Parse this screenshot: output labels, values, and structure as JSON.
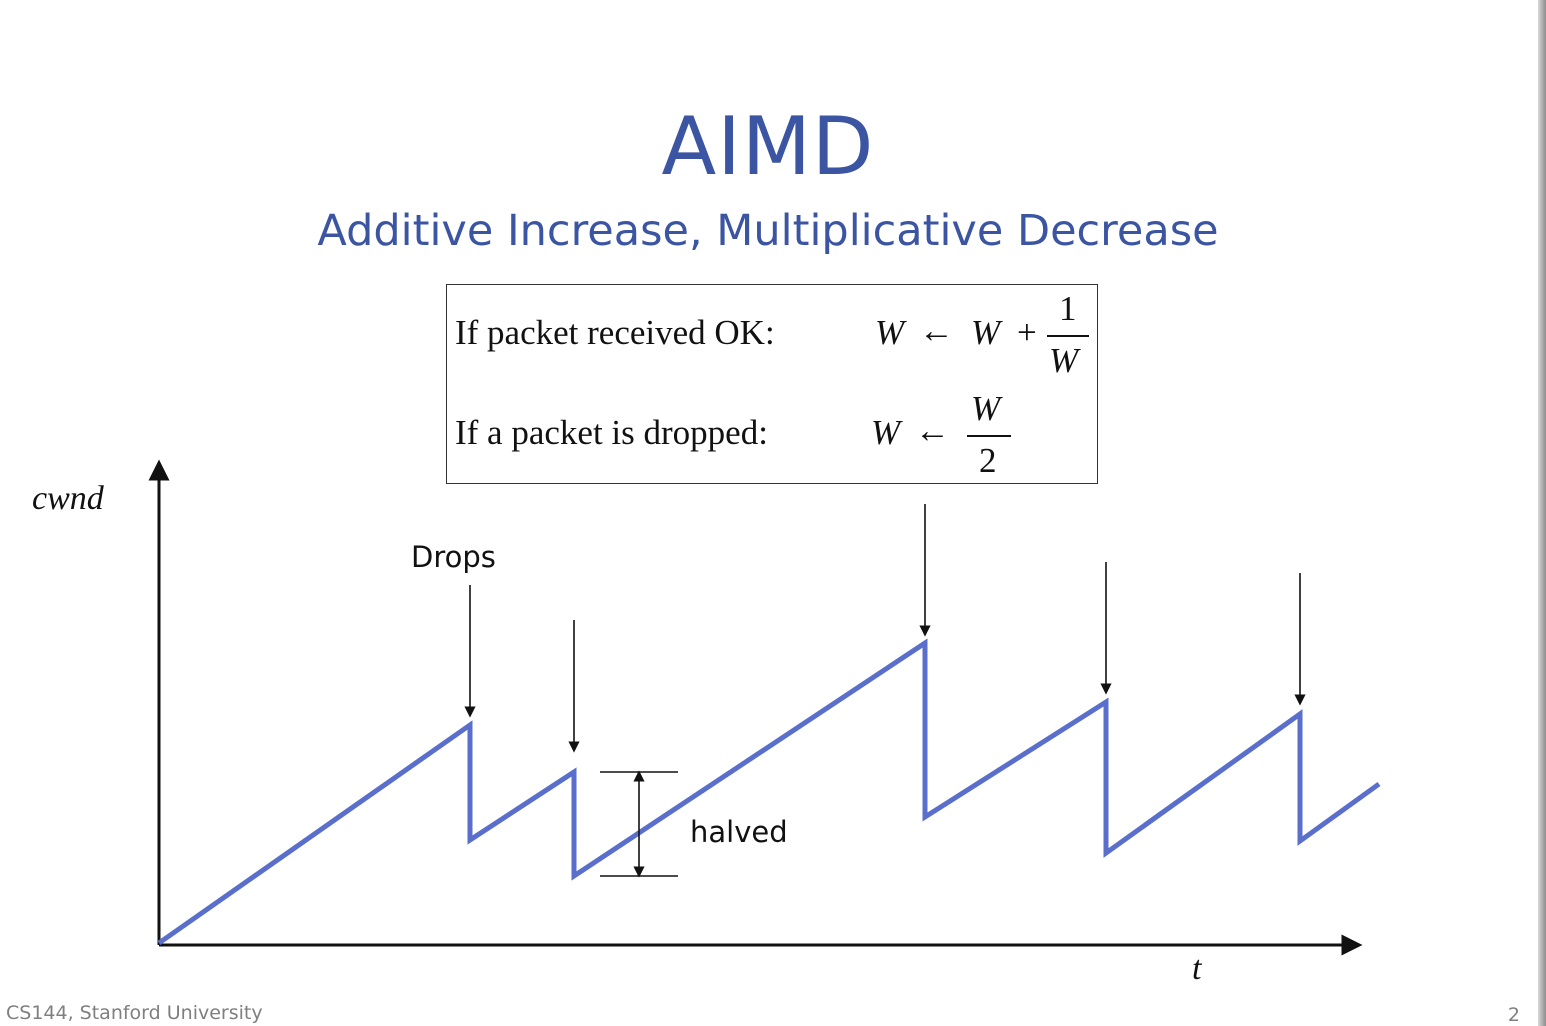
{
  "slide": {
    "title": "AIMD",
    "subtitle": "Additive Increase, Multiplicative Decrease",
    "footer": "CS144, Stanford University",
    "page_number": "2"
  },
  "rules": {
    "received": {
      "condition": "If packet received OK:",
      "lhs": "W",
      "arrow": "←",
      "rhs_term": "W",
      "plus": "+",
      "numerator": "1",
      "denominator": "W"
    },
    "dropped": {
      "condition": "If a packet is dropped:",
      "lhs": "W",
      "arrow": "←",
      "numerator": "W",
      "denominator": "2"
    }
  },
  "diagram": {
    "y_axis_label": "cwnd",
    "x_axis_label": "t",
    "drops_label": "Drops",
    "halved_label": "halved",
    "line_color": "#5a6fcc"
  }
}
